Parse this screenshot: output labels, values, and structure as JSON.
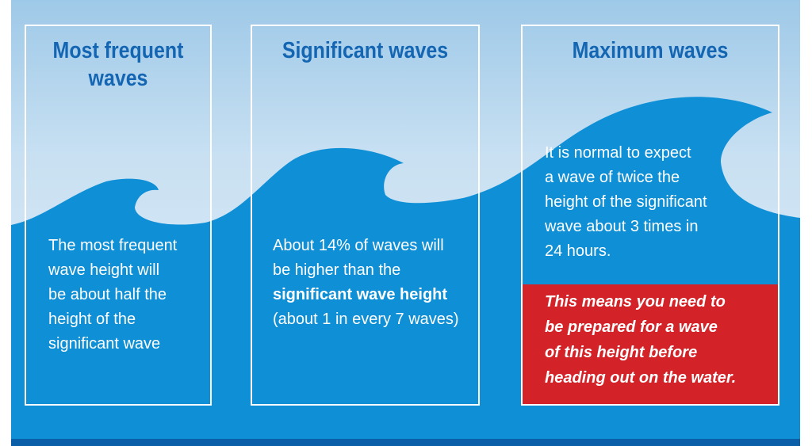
{
  "colors": {
    "sky_top": "#9ec9e8",
    "water": "#0f8fd6",
    "title_blue": "#1466b3",
    "callout_red": "#d42328",
    "band": "#0b5fa8"
  },
  "panels": [
    {
      "title_lines": [
        "Most frequent",
        "waves"
      ],
      "body_lines": [
        "The most frequent",
        "wave height will",
        "be about half the",
        "height of the",
        "significant wave"
      ]
    },
    {
      "title_lines": [
        "Significant waves"
      ],
      "body_line1": "About 14% of waves will",
      "body_line2": "be higher than the",
      "body_line3_bold": "significant wave height",
      "body_line4": "(about 1 in every 7 waves)"
    },
    {
      "title_lines": [
        "Maximum waves"
      ],
      "body_lines": [
        "It is normal to expect",
        "a wave of twice the",
        "height of the significant",
        "wave about 3 times in",
        "24 hours."
      ],
      "callout_lines": [
        "This means you need to",
        "be prepared for a wave",
        "of this height before",
        "heading out on the water."
      ]
    }
  ]
}
